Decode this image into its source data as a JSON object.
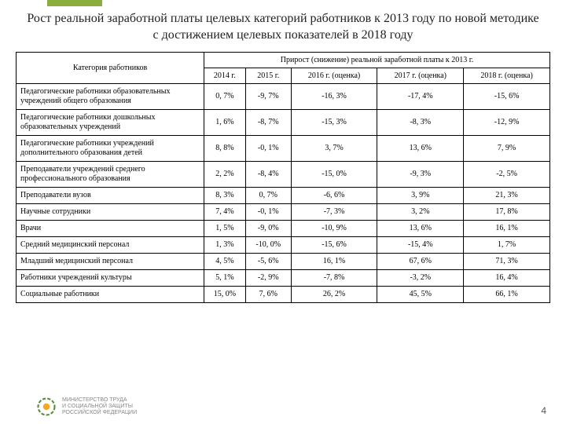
{
  "title": "Рост  реальной заработной платы целевых категорий работников к 2013 году по новой методике с достижением целевых показателей в 2018 году",
  "header": {
    "cat": "Категория работников",
    "group": "Прирост (снижение) реальной заработной платы к 2013 г.",
    "cols": [
      "2014 г.",
      "2015 г.",
      "2016 г. (оценка)",
      "2017 г. (оценка)",
      "2018 г. (оценка)"
    ]
  },
  "rows": [
    {
      "c": "Педагогические работники образовательных учреждений общего образования",
      "v": [
        "0, 7%",
        "-9, 7%",
        "-16, 3%",
        "-17, 4%",
        "-15, 6%"
      ]
    },
    {
      "c": "Педагогические работники дошкольных образовательных учреждений",
      "v": [
        "1, 6%",
        "-8, 7%",
        "-15, 3%",
        "-8, 3%",
        "-12, 9%"
      ]
    },
    {
      "c": "Педагогические работники учреждений дополнительного образования детей",
      "v": [
        "8, 8%",
        "-0, 1%",
        "3, 7%",
        "13, 6%",
        "7, 9%"
      ]
    },
    {
      "c": "Преподаватели  учреждений среднего профессионального образования",
      "v": [
        "2, 2%",
        "-8, 4%",
        "-15, 0%",
        "-9, 3%",
        "-2, 5%"
      ]
    },
    {
      "c": "Преподаватели  вузов",
      "v": [
        "8, 3%",
        "0, 7%",
        "-6, 6%",
        "3, 9%",
        "21, 3%"
      ]
    },
    {
      "c": "Научные сотрудники",
      "v": [
        "7, 4%",
        "-0, 1%",
        "-7, 3%",
        "3, 2%",
        "17, 8%"
      ]
    },
    {
      "c": "Врачи",
      "v": [
        "1, 5%",
        "-9, 0%",
        "-10, 9%",
        "13, 6%",
        "16, 1%"
      ]
    },
    {
      "c": "Средний медицинский персонал",
      "v": [
        "1, 3%",
        "-10, 0%",
        "-15, 6%",
        "-15, 4%",
        "1, 7%"
      ]
    },
    {
      "c": "Младший медицинский  персонал",
      "v": [
        "4, 5%",
        "-5, 6%",
        "16, 1%",
        "67, 6%",
        "71, 3%"
      ]
    },
    {
      "c": "Работники учреждений культуры",
      "v": [
        "5, 1%",
        "-2, 9%",
        "-7, 8%",
        "-3, 2%",
        "16, 4%"
      ]
    },
    {
      "c": "Социальные работники",
      "v": [
        "15, 0%",
        "7, 6%",
        "26, 2%",
        "45, 5%",
        "66, 1%"
      ]
    }
  ],
  "footer": {
    "l1": "МИНИСТЕРСТВО ТРУДА",
    "l2": "И СОЦИАЛЬНОЙ ЗАЩИТЫ",
    "l3": "РОССИЙСКОЙ ФЕДЕРАЦИИ"
  },
  "page": "4",
  "style": {
    "border": "#000",
    "title_fs": 16,
    "cell_fs": 10
  }
}
